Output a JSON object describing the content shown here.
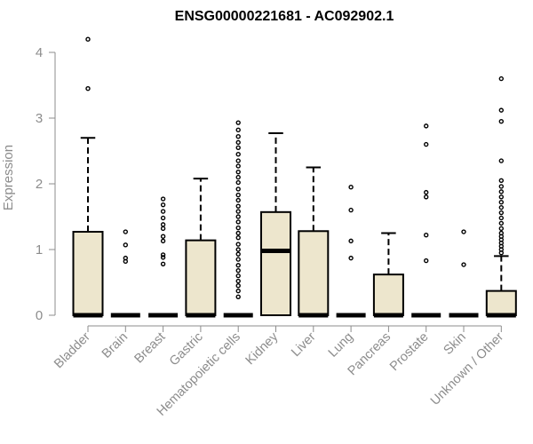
{
  "chart_data": {
    "type": "boxplot",
    "title": "ENSG00000221681 - AC092902.1",
    "xlabel": "",
    "ylabel": "Expression",
    "ylim": [
      0,
      4.3
    ],
    "yticks": [
      0,
      1,
      2,
      3,
      4
    ],
    "grid": false,
    "box_fill": "#ede6cd",
    "box_stroke": "#000000",
    "outlier_color": "#000000",
    "axis_color": "#8c8c8c",
    "categories": [
      "Bladder",
      "Brain",
      "Breast",
      "Gastric",
      "Hematopoietic cells",
      "Kidney",
      "Liver",
      "Lung",
      "Pancreas",
      "Prostate",
      "Skin",
      "Unknown / Other"
    ],
    "boxes": [
      {
        "label": "Bladder",
        "q1": 0,
        "median": 0,
        "q3": 1.27,
        "whisker_low": 0,
        "whisker_high": 2.7,
        "outliers": [
          3.45,
          4.2
        ]
      },
      {
        "label": "Brain",
        "q1": 0,
        "median": 0,
        "q3": 0,
        "whisker_low": 0,
        "whisker_high": 0,
        "outliers": [
          0.82,
          0.87,
          1.07,
          1.27
        ]
      },
      {
        "label": "Breast",
        "q1": 0,
        "median": 0,
        "q3": 0,
        "whisker_low": 0,
        "whisker_high": 0,
        "outliers": [
          0.78,
          0.88,
          0.92,
          1.13,
          1.2,
          1.32,
          1.38,
          1.48,
          1.58,
          1.68,
          1.77
        ]
      },
      {
        "label": "Gastric",
        "q1": 0,
        "median": 0,
        "q3": 1.14,
        "whisker_low": 0,
        "whisker_high": 2.08,
        "outliers": []
      },
      {
        "label": "Hematopoietic cells",
        "q1": 0,
        "median": 0,
        "q3": 0,
        "whisker_low": 0,
        "whisker_high": 0,
        "outliers": [
          0.28,
          0.37,
          0.45,
          0.52,
          0.6,
          0.68,
          0.76,
          0.85,
          0.93,
          1.0,
          1.08,
          1.18,
          1.25,
          1.33,
          1.42,
          1.5,
          1.58,
          1.66,
          1.75,
          1.83,
          1.92,
          2.02,
          2.1,
          2.18,
          2.27,
          2.35,
          2.45,
          2.55,
          2.63,
          2.72,
          2.82,
          2.93
        ]
      },
      {
        "label": "Kidney",
        "q1": 0,
        "median": 0.98,
        "q3": 1.57,
        "whisker_low": 0,
        "whisker_high": 2.77,
        "outliers": []
      },
      {
        "label": "Liver",
        "q1": 0,
        "median": 0,
        "q3": 1.28,
        "whisker_low": 0,
        "whisker_high": 2.25,
        "outliers": []
      },
      {
        "label": "Lung",
        "q1": 0,
        "median": 0,
        "q3": 0,
        "whisker_low": 0,
        "whisker_high": 0,
        "outliers": [
          0.87,
          1.13,
          1.6,
          1.95
        ]
      },
      {
        "label": "Pancreas",
        "q1": 0,
        "median": 0,
        "q3": 0.62,
        "whisker_low": 0,
        "whisker_high": 1.25,
        "outliers": []
      },
      {
        "label": "Prostate",
        "q1": 0,
        "median": 0,
        "q3": 0,
        "whisker_low": 0,
        "whisker_high": 0,
        "outliers": [
          0.83,
          1.22,
          1.8,
          1.87,
          2.6,
          2.88
        ]
      },
      {
        "label": "Skin",
        "q1": 0,
        "median": 0,
        "q3": 0,
        "whisker_low": 0,
        "whisker_high": 0,
        "outliers": [
          0.77,
          1.27
        ]
      },
      {
        "label": "Unknown / Other",
        "q1": 0,
        "median": 0,
        "q3": 0.37,
        "whisker_low": 0,
        "whisker_high": 0.9,
        "outliers": [
          0.95,
          1.0,
          1.05,
          1.1,
          1.15,
          1.2,
          1.25,
          1.32,
          1.4,
          1.48,
          1.56,
          1.64,
          1.72,
          1.8,
          1.88,
          1.96,
          2.05,
          2.35,
          2.95,
          3.12,
          3.6
        ]
      }
    ]
  }
}
